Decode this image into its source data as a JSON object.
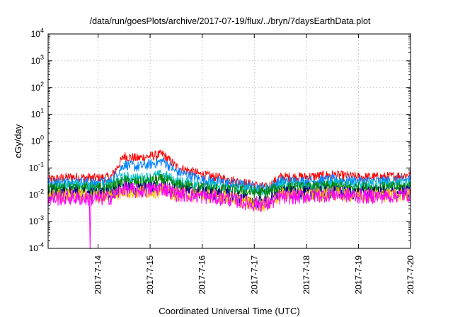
{
  "chart_data": {
    "type": "line",
    "title": "/data/run/goesPlots/archive/2017-07-19/flux/../bryn/7daysEarthData.plot",
    "xlabel": "Coordinated Universal Time (UTC)",
    "ylabel": "cGy/day",
    "yscale": "log",
    "xlim": [
      "2017-07-13T01:00",
      "2017-07-20T00:00"
    ],
    "ylim": [
      0.0001,
      10000
    ],
    "grid": true,
    "x_tick_labels": [
      "2017-7-14",
      "2017-7-15",
      "2017-7-16",
      "2017-7-17",
      "2017-7-18",
      "2017-7-19",
      "2017-7-20"
    ],
    "y_tick_labels": [
      {
        "base": "10",
        "exp": "-4"
      },
      {
        "base": "10",
        "exp": "-3"
      },
      {
        "base": "10",
        "exp": "-2"
      },
      {
        "base": "10",
        "exp": "-1"
      },
      {
        "base": "10",
        "exp": "0"
      },
      {
        "base": "10",
        "exp": "1"
      },
      {
        "base": "10",
        "exp": "2"
      },
      {
        "base": "10",
        "exp": "3"
      },
      {
        "base": "10",
        "exp": "4"
      }
    ],
    "series": [
      {
        "color": "#ff0000",
        "x": [
          "2017-07-13T01:00",
          "2017-07-13T12:00",
          "2017-07-14T00:00",
          "2017-07-14T06:00",
          "2017-07-14T12:00",
          "2017-07-14T18:00",
          "2017-07-15T00:00",
          "2017-07-15T06:00",
          "2017-07-15T12:00",
          "2017-07-16T00:00",
          "2017-07-16T12:00",
          "2017-07-17T00:00",
          "2017-07-17T06:00",
          "2017-07-17T12:00",
          "2017-07-18T00:00",
          "2017-07-18T12:00",
          "2017-07-19T00:00",
          "2017-07-19T12:00",
          "2017-07-20T00:00"
        ],
        "y": [
          0.04,
          0.05,
          0.045,
          0.05,
          0.3,
          0.25,
          0.3,
          0.35,
          0.12,
          0.06,
          0.04,
          0.025,
          0.02,
          0.05,
          0.05,
          0.06,
          0.05,
          0.05,
          0.06
        ]
      },
      {
        "color": "#0080ff",
        "x": [
          "2017-07-13T01:00",
          "2017-07-13T12:00",
          "2017-07-14T00:00",
          "2017-07-14T06:00",
          "2017-07-14T12:00",
          "2017-07-14T18:00",
          "2017-07-15T00:00",
          "2017-07-15T06:00",
          "2017-07-15T12:00",
          "2017-07-16T00:00",
          "2017-07-16T12:00",
          "2017-07-17T00:00",
          "2017-07-17T06:00",
          "2017-07-17T12:00",
          "2017-07-18T00:00",
          "2017-07-18T12:00",
          "2017-07-19T00:00",
          "2017-07-19T12:00",
          "2017-07-20T00:00"
        ],
        "y": [
          0.03,
          0.035,
          0.03,
          0.035,
          0.15,
          0.12,
          0.15,
          0.2,
          0.08,
          0.04,
          0.03,
          0.022,
          0.018,
          0.035,
          0.035,
          0.04,
          0.035,
          0.035,
          0.04
        ]
      },
      {
        "color": "#00c0c0",
        "x": [
          "2017-07-13T01:00",
          "2017-07-13T12:00",
          "2017-07-14T00:00",
          "2017-07-14T06:00",
          "2017-07-14T12:00",
          "2017-07-14T18:00",
          "2017-07-15T00:00",
          "2017-07-15T06:00",
          "2017-07-15T12:00",
          "2017-07-16T00:00",
          "2017-07-16T12:00",
          "2017-07-17T00:00",
          "2017-07-17T06:00",
          "2017-07-17T12:00",
          "2017-07-18T00:00",
          "2017-07-18T12:00",
          "2017-07-19T00:00",
          "2017-07-19T12:00",
          "2017-07-20T00:00"
        ],
        "y": [
          0.022,
          0.025,
          0.022,
          0.025,
          0.05,
          0.045,
          0.05,
          0.06,
          0.035,
          0.025,
          0.02,
          0.017,
          0.016,
          0.025,
          0.025,
          0.028,
          0.025,
          0.025,
          0.028
        ]
      },
      {
        "color": "#008000",
        "x": [
          "2017-07-13T01:00",
          "2017-07-13T12:00",
          "2017-07-14T00:00",
          "2017-07-14T06:00",
          "2017-07-14T12:00",
          "2017-07-14T18:00",
          "2017-07-15T00:00",
          "2017-07-15T06:00",
          "2017-07-15T12:00",
          "2017-07-16T00:00",
          "2017-07-16T12:00",
          "2017-07-17T00:00",
          "2017-07-17T06:00",
          "2017-07-17T12:00",
          "2017-07-18T00:00",
          "2017-07-18T12:00",
          "2017-07-19T00:00",
          "2017-07-19T12:00",
          "2017-07-20T00:00"
        ],
        "y": [
          0.018,
          0.02,
          0.018,
          0.02,
          0.035,
          0.03,
          0.035,
          0.04,
          0.025,
          0.02,
          0.016,
          0.014,
          0.013,
          0.02,
          0.02,
          0.022,
          0.02,
          0.02,
          0.022
        ]
      },
      {
        "color": "#000080",
        "x": [
          "2017-07-13T01:00",
          "2017-07-13T12:00",
          "2017-07-14T00:00",
          "2017-07-14T06:00",
          "2017-07-14T12:00",
          "2017-07-14T18:00",
          "2017-07-15T00:00",
          "2017-07-15T06:00",
          "2017-07-15T12:00",
          "2017-07-16T00:00",
          "2017-07-16T12:00",
          "2017-07-17T00:00",
          "2017-07-17T06:00",
          "2017-07-17T12:00",
          "2017-07-18T00:00",
          "2017-07-18T12:00",
          "2017-07-19T00:00",
          "2017-07-19T12:00",
          "2017-07-20T00:00"
        ],
        "y": [
          0.012,
          0.013,
          0.012,
          0.013,
          0.02,
          0.018,
          0.02,
          0.022,
          0.016,
          0.013,
          0.011,
          0.006,
          0.006,
          0.013,
          0.013,
          0.014,
          0.013,
          0.013,
          0.014
        ]
      },
      {
        "color": "#ffc000",
        "x": [
          "2017-07-13T01:00",
          "2017-07-13T12:00",
          "2017-07-14T00:00",
          "2017-07-14T06:00",
          "2017-07-14T12:00",
          "2017-07-14T18:00",
          "2017-07-15T00:00",
          "2017-07-15T06:00",
          "2017-07-15T12:00",
          "2017-07-16T00:00",
          "2017-07-16T12:00",
          "2017-07-17T00:00",
          "2017-07-17T06:00",
          "2017-07-17T12:00",
          "2017-07-18T00:00",
          "2017-07-18T12:00",
          "2017-07-19T00:00",
          "2017-07-19T12:00",
          "2017-07-20T00:00"
        ],
        "y": [
          0.01,
          0.011,
          0.01,
          0.011,
          0.015,
          0.014,
          0.015,
          0.016,
          0.012,
          0.011,
          0.009,
          0.005,
          0.005,
          0.011,
          0.011,
          0.012,
          0.011,
          0.011,
          0.012
        ]
      },
      {
        "color": "#ff00ff",
        "x": [
          "2017-07-13T01:00",
          "2017-07-13T12:00",
          "2017-07-13T20:00",
          "2017-07-13T20:20",
          "2017-07-13T20:40",
          "2017-07-14T00:00",
          "2017-07-14T06:00",
          "2017-07-14T12:00",
          "2017-07-14T18:00",
          "2017-07-15T00:00",
          "2017-07-15T06:00",
          "2017-07-15T12:00",
          "2017-07-16T00:00",
          "2017-07-16T12:00",
          "2017-07-17T00:00",
          "2017-07-17T06:00",
          "2017-07-17T12:00",
          "2017-07-18T00:00",
          "2017-07-18T12:00",
          "2017-07-19T00:00",
          "2017-07-19T12:00",
          "2017-07-20T00:00"
        ],
        "y": [
          0.008,
          0.009,
          0.008,
          0.0001,
          0.008,
          0.008,
          0.009,
          0.02,
          0.015,
          0.018,
          0.02,
          0.012,
          0.01,
          0.008,
          0.005,
          0.005,
          0.009,
          0.01,
          0.012,
          0.01,
          0.01,
          0.012
        ]
      }
    ]
  }
}
